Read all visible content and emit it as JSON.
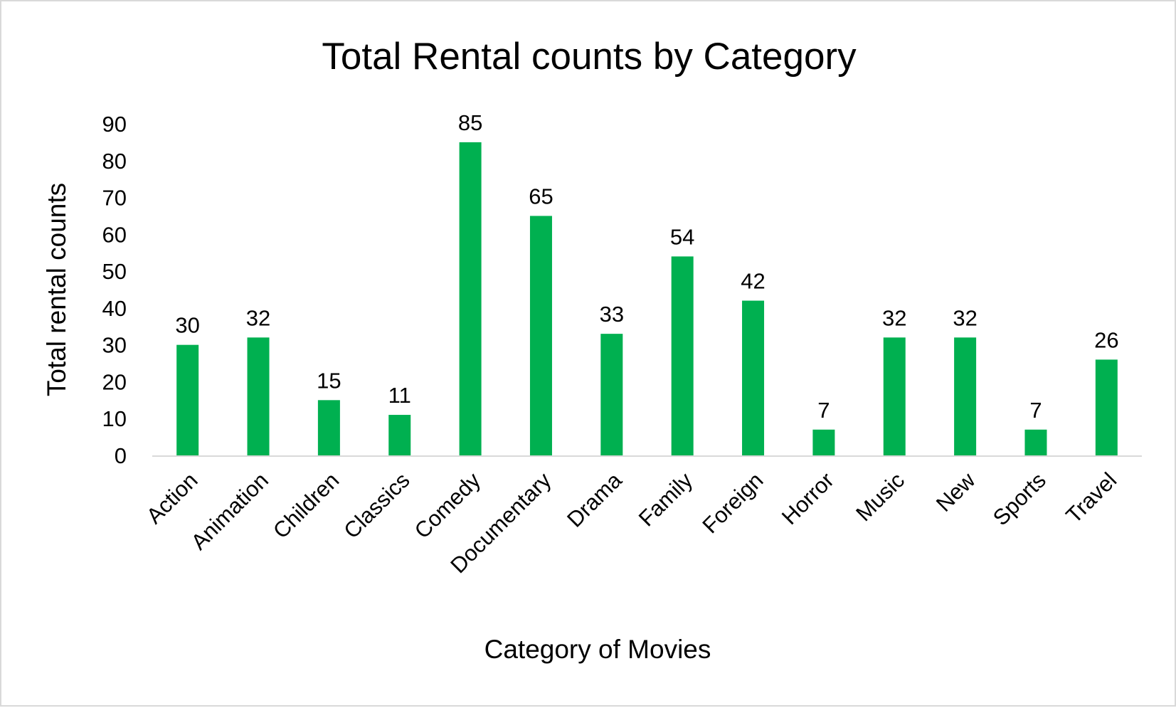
{
  "chart_data": {
    "type": "bar",
    "title": "Total Rental counts by Category",
    "xlabel": "Category of Movies",
    "ylabel": "Total rental counts",
    "categories": [
      "Action",
      "Animation",
      "Children",
      "Classics",
      "Comedy",
      "Documentary",
      "Drama",
      "Family",
      "Foreign",
      "Horror",
      "Music",
      "New",
      "Sports",
      "Travel"
    ],
    "values": [
      30,
      32,
      15,
      11,
      85,
      65,
      33,
      54,
      42,
      7,
      32,
      32,
      7,
      26
    ],
    "ylim": [
      0,
      90
    ],
    "yticks": [
      0,
      10,
      20,
      30,
      40,
      50,
      60,
      70,
      80,
      90
    ],
    "bar_color": "#00b050",
    "axis_color": "#d9d9d9",
    "grid": false,
    "data_labels": true,
    "legend": "none"
  }
}
